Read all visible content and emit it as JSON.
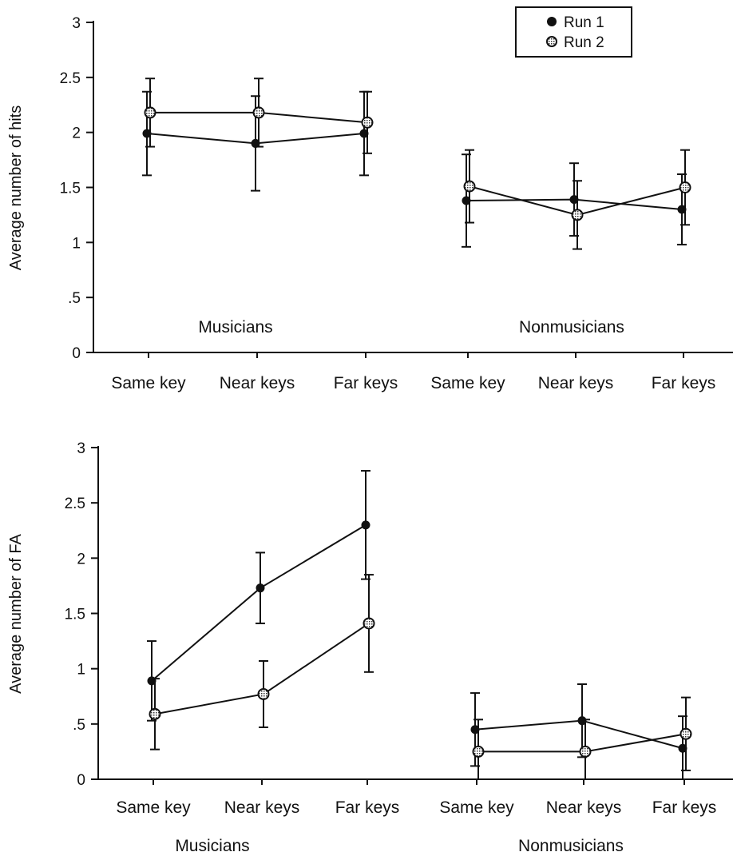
{
  "colors": {
    "run1": "#111111",
    "run2_fill": "#cfcfcf",
    "axis": "#111111"
  },
  "legend": [
    {
      "label": "Run 1",
      "marker": "filled-circle"
    },
    {
      "label": "Run 2",
      "marker": "hatched-circle"
    }
  ],
  "chart_data": [
    {
      "type": "line",
      "ylabel": "Average number of hits",
      "ylim": [
        0,
        3
      ],
      "yticks": [
        "0",
        ".5",
        "1",
        "1.5",
        "2",
        "2.5",
        "3"
      ],
      "categories": [
        "Same key",
        "Near keys",
        "Far keys",
        "Same key",
        "Near keys",
        "Far keys"
      ],
      "groups": [
        {
          "label": "Musicians",
          "label_position": "inside"
        },
        {
          "label": "Nonmusicians",
          "label_position": "inside"
        }
      ],
      "legend_position": "top-right",
      "series": [
        {
          "name": "Run 1",
          "marker": "filled-circle",
          "values": [
            1.99,
            1.9,
            1.99,
            1.38,
            1.39,
            1.3
          ],
          "errors": [
            0.38,
            0.43,
            0.38,
            0.42,
            0.33,
            0.32
          ]
        },
        {
          "name": "Run 2",
          "marker": "hatched-circle",
          "values": [
            2.18,
            2.18,
            2.09,
            1.51,
            1.25,
            1.5
          ],
          "errors": [
            0.31,
            0.31,
            0.28,
            0.33,
            0.31,
            0.34
          ]
        }
      ]
    },
    {
      "type": "line",
      "ylabel": "Average number of FA",
      "ylim": [
        0,
        3
      ],
      "yticks": [
        "0",
        ".5",
        "1",
        "1.5",
        "2",
        "2.5",
        "3"
      ],
      "categories": [
        "Same key",
        "Near keys",
        "Far keys",
        "Same key",
        "Near keys",
        "Far keys"
      ],
      "groups": [
        {
          "label": "Musicians",
          "label_position": "below"
        },
        {
          "label": "Nonmusicians",
          "label_position": "below"
        }
      ],
      "series": [
        {
          "name": "Run 1",
          "marker": "filled-circle",
          "values": [
            0.89,
            1.73,
            2.3,
            0.45,
            0.53,
            0.28
          ],
          "errors": [
            0.36,
            0.32,
            0.49,
            0.33,
            0.33,
            0.29
          ]
        },
        {
          "name": "Run 2",
          "marker": "hatched-circle",
          "values": [
            0.59,
            0.77,
            1.41,
            0.25,
            0.25,
            0.41
          ],
          "errors": [
            0.32,
            0.3,
            0.44,
            0.29,
            0.29,
            0.33
          ]
        }
      ]
    }
  ]
}
